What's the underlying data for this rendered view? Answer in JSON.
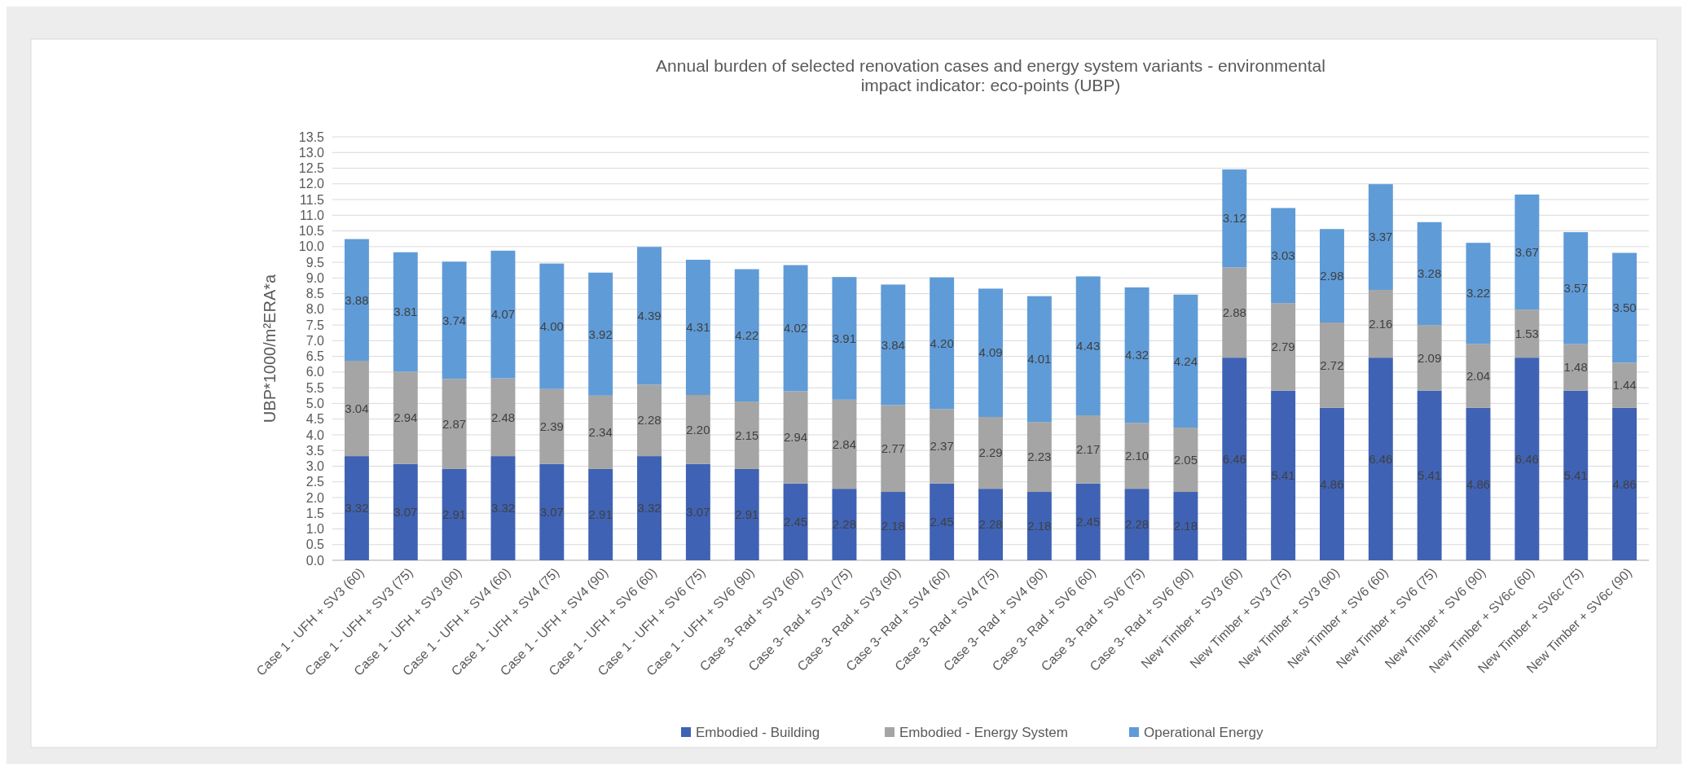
{
  "chart_data": {
    "type": "bar",
    "title": "Annual burden of selected renovation cases and energy system variants - environmental\nimpact indicator: eco-points (UBP)",
    "ylabel": "UBP*1000/m²ERA*a",
    "stacked": true,
    "grid": "y",
    "legend": "bottom",
    "categories": [
      "Case 1 - UFH + SV3 (60)",
      "Case 1 - UFH + SV3 (75)",
      "Case 1 - UFH + SV3 (90)",
      "Case 1 - UFH + SV4 (60)",
      "Case 1 - UFH + SV4 (75)",
      "Case 1 - UFH + SV4 (90)",
      "Case 1 - UFH + SV6 (60)",
      "Case 1 - UFH + SV6 (75)",
      "Case 1 - UFH + SV6 (90)",
      "Case 3- Rad + SV3 (60)",
      "Case 3- Rad + SV3 (75)",
      "Case 3- Rad + SV3 (90)",
      "Case 3- Rad + SV4 (60)",
      "Case 3- Rad + SV4 (75)",
      "Case 3- Rad + SV4 (90)",
      "Case 3- Rad + SV6 (60)",
      "Case 3- Rad + SV6 (75)",
      "Case 3- Rad + SV6 (90)",
      "New Timber + SV3 (60)",
      "New Timber + SV3 (75)",
      "New Timber + SV3 (90)",
      "New Timber + SV6 (60)",
      "New Timber + SV6 (75)",
      "New Timber + SV6 (90)",
      "New Timber + SV6c (60)",
      "New Timber + SV6c (75)",
      "New Timber + SV6c (90)"
    ],
    "series": [
      {
        "name": "Embodied - Building",
        "color": "#3f62b4",
        "values": [
          3.32,
          3.07,
          2.91,
          3.32,
          3.07,
          2.91,
          3.32,
          3.07,
          2.91,
          2.45,
          2.28,
          2.18,
          2.45,
          2.28,
          2.18,
          2.45,
          2.28,
          2.18,
          6.46,
          5.41,
          4.86,
          6.46,
          5.41,
          4.86,
          6.46,
          5.41,
          4.86
        ],
        "value_labels": [
          "3.32",
          "3.07",
          "2.91",
          "3.32",
          "3.07",
          "2.91",
          "3.32",
          "3.07",
          "2.91",
          "2.45",
          "2.28",
          "2.18",
          "2.45",
          "2.28",
          "2.18",
          "2.45",
          "2.28",
          "2.18",
          "6.46",
          "5.41",
          "4.86",
          "6.46",
          "5.41",
          "4.86",
          "6.46",
          "5.41",
          "4.86"
        ]
      },
      {
        "name": "Embodied - Energy System",
        "color": "#a5a5a5",
        "values": [
          3.04,
          2.94,
          2.87,
          2.48,
          2.39,
          2.34,
          2.28,
          2.2,
          2.15,
          2.94,
          2.84,
          2.77,
          2.37,
          2.29,
          2.23,
          2.17,
          2.1,
          2.05,
          2.88,
          2.79,
          2.72,
          2.16,
          2.09,
          2.04,
          1.53,
          1.48,
          1.44
        ],
        "value_labels": [
          "3.04",
          "2.94",
          "2.87",
          "2.48",
          "2.39",
          "2.34",
          "2.28",
          "2.20",
          "2.15",
          "2.94",
          "2.84",
          "2.77",
          "2.37",
          "2.29",
          "2.23",
          "2.17",
          "2.10",
          "2.05",
          "2.88",
          "2.79",
          "2.72",
          "2.16",
          "2.09",
          "2.04",
          "1.53",
          "1.48",
          "1.44"
        ]
      },
      {
        "name": "Operational Energy",
        "color": "#5f9bd7",
        "values": [
          3.88,
          3.81,
          3.74,
          4.07,
          4.0,
          3.92,
          4.39,
          4.31,
          4.22,
          4.02,
          3.91,
          3.84,
          4.2,
          4.09,
          4.01,
          4.43,
          4.32,
          4.24,
          3.12,
          3.03,
          2.98,
          3.37,
          3.28,
          3.22,
          3.67,
          3.57,
          3.5
        ],
        "value_labels": [
          "3.88",
          "3.81",
          "3.74",
          "4.07",
          "4.00",
          "3.92",
          "4.39",
          "4.31",
          "4.22",
          "4.02",
          "3.91",
          "3.84",
          "4.20",
          "4.09",
          "4.01",
          "4.43",
          "4.32",
          "4.24",
          "3.12",
          "3.03",
          "2.98",
          "3.37",
          "3.28",
          "3.22",
          "3.67",
          "3.57",
          "3.50"
        ]
      }
    ],
    "ylim": [
      0,
      13.5
    ],
    "yticks": [
      {
        "value": 0,
        "label": "0.0"
      },
      0.5,
      {
        "value": 1,
        "label": "1.0"
      },
      1.5,
      {
        "value": 2,
        "label": "2.0"
      },
      2.5,
      {
        "value": 3,
        "label": "3.0"
      },
      3.5,
      {
        "value": 4,
        "label": "4.0"
      },
      4.5,
      {
        "value": 5,
        "label": "5.0"
      },
      5.5,
      {
        "value": 6,
        "label": "6.0"
      },
      6.5,
      {
        "value": 7,
        "label": "7.0"
      },
      7.5,
      {
        "value": 8,
        "label": "8.0"
      },
      8.5,
      {
        "value": 9,
        "label": "9.0"
      },
      9.5,
      {
        "value": 10,
        "label": "10.0"
      },
      10.5,
      {
        "value": 11,
        "label": "11.0"
      },
      11.5,
      {
        "value": 12,
        "label": "12.0"
      },
      12.5,
      {
        "value": 13,
        "label": "13.0"
      },
      13.5
    ]
  }
}
